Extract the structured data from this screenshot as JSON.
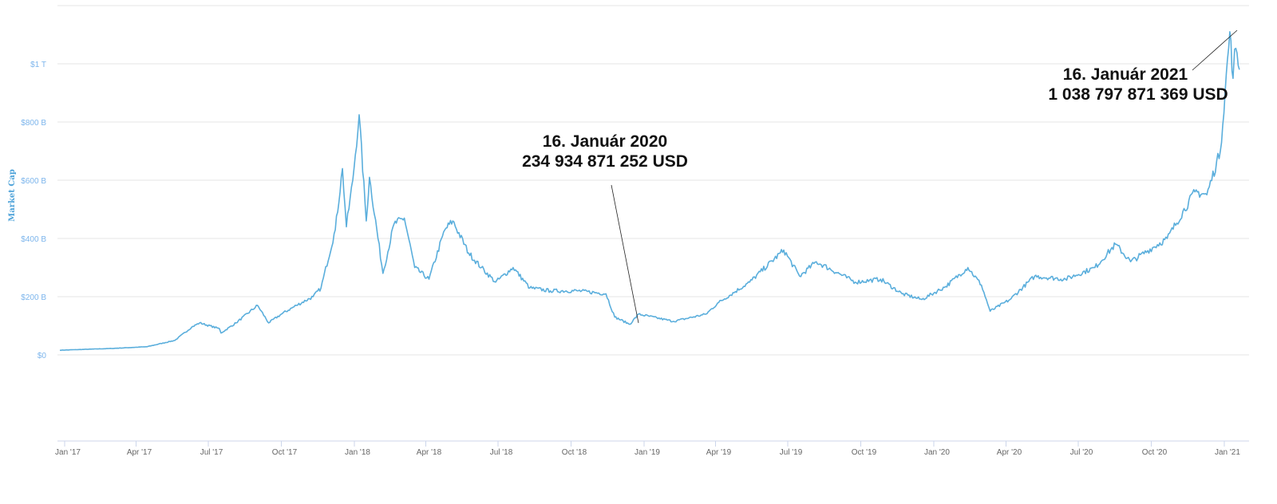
{
  "chart_data": {
    "type": "line",
    "title": "",
    "xlabel": "",
    "ylabel": "Market Cap",
    "ylim": [
      0,
      1000
    ],
    "y_unit": "billion USD",
    "grid": true,
    "line_color": "#5aaedc",
    "y_ticks": [
      {
        "value": 0,
        "label": "$0"
      },
      {
        "value": 200,
        "label": "$200 B"
      },
      {
        "value": 400,
        "label": "$400 B"
      },
      {
        "value": 600,
        "label": "$600 B"
      },
      {
        "value": 800,
        "label": "$800 B"
      },
      {
        "value": 1000,
        "label": "$1 T"
      }
    ],
    "x_ticks": [
      {
        "date": "2017-01-01",
        "label": "Jan '17"
      },
      {
        "date": "2017-04-01",
        "label": "Apr '17"
      },
      {
        "date": "2017-07-01",
        "label": "Jul '17"
      },
      {
        "date": "2017-10-01",
        "label": "Oct '17"
      },
      {
        "date": "2018-01-01",
        "label": "Jan '18"
      },
      {
        "date": "2018-04-01",
        "label": "Apr '18"
      },
      {
        "date": "2018-07-01",
        "label": "Jul '18"
      },
      {
        "date": "2018-10-01",
        "label": "Oct '18"
      },
      {
        "date": "2019-01-01",
        "label": "Jan '19"
      },
      {
        "date": "2019-04-01",
        "label": "Apr '19"
      },
      {
        "date": "2019-07-01",
        "label": "Jul '19"
      },
      {
        "date": "2019-10-01",
        "label": "Oct '19"
      },
      {
        "date": "2020-01-01",
        "label": "Jan '20"
      },
      {
        "date": "2020-04-01",
        "label": "Apr '20"
      },
      {
        "date": "2020-07-01",
        "label": "Jul '20"
      },
      {
        "date": "2020-10-01",
        "label": "Oct '20"
      },
      {
        "date": "2021-01-01",
        "label": "Jan '21"
      }
    ],
    "series": [
      {
        "name": "Market Cap",
        "points": [
          [
            "2016-12-26",
            16
          ],
          [
            "2017-03-01",
            22
          ],
          [
            "2017-04-15",
            28
          ],
          [
            "2017-05-20",
            50
          ],
          [
            "2017-06-10",
            95
          ],
          [
            "2017-06-20",
            110
          ],
          [
            "2017-07-15",
            90
          ],
          [
            "2017-07-17",
            75
          ],
          [
            "2017-08-05",
            110
          ],
          [
            "2017-09-01",
            170
          ],
          [
            "2017-09-15",
            110
          ],
          [
            "2017-10-01",
            140
          ],
          [
            "2017-10-20",
            170
          ],
          [
            "2017-11-10",
            200
          ],
          [
            "2017-11-20",
            230
          ],
          [
            "2017-12-08",
            430
          ],
          [
            "2017-12-17",
            640
          ],
          [
            "2017-12-22",
            440
          ],
          [
            "2017-12-30",
            600
          ],
          [
            "2018-01-07",
            825
          ],
          [
            "2018-01-16",
            460
          ],
          [
            "2018-01-20",
            610
          ],
          [
            "2018-02-06",
            280
          ],
          [
            "2018-02-20",
            450
          ],
          [
            "2018-03-05",
            470
          ],
          [
            "2018-03-18",
            300
          ],
          [
            "2018-04-05",
            260
          ],
          [
            "2018-04-25",
            430
          ],
          [
            "2018-05-05",
            460
          ],
          [
            "2018-05-25",
            350
          ],
          [
            "2018-06-10",
            300
          ],
          [
            "2018-06-28",
            250
          ],
          [
            "2018-07-20",
            300
          ],
          [
            "2018-08-10",
            230
          ],
          [
            "2018-09-05",
            220
          ],
          [
            "2018-10-10",
            220
          ],
          [
            "2018-11-14",
            210
          ],
          [
            "2018-11-25",
            130
          ],
          [
            "2018-12-14",
            105
          ],
          [
            "2018-12-25",
            140
          ],
          [
            "2019-02-07",
            115
          ],
          [
            "2019-03-20",
            140
          ],
          [
            "2019-04-05",
            180
          ],
          [
            "2019-05-14",
            250
          ],
          [
            "2019-06-26",
            360
          ],
          [
            "2019-07-16",
            270
          ],
          [
            "2019-08-06",
            320
          ],
          [
            "2019-09-24",
            250
          ],
          [
            "2019-10-26",
            260
          ],
          [
            "2019-11-22",
            210
          ],
          [
            "2019-12-17",
            190
          ],
          [
            "2020-01-16",
            235
          ],
          [
            "2020-02-13",
            300
          ],
          [
            "2020-03-01",
            240
          ],
          [
            "2020-03-12",
            150
          ],
          [
            "2020-04-06",
            190
          ],
          [
            "2020-05-07",
            270
          ],
          [
            "2020-06-15",
            260
          ],
          [
            "2020-07-22",
            300
          ],
          [
            "2020-08-17",
            380
          ],
          [
            "2020-09-05",
            320
          ],
          [
            "2020-10-21",
            400
          ],
          [
            "2020-11-25",
            560
          ],
          [
            "2020-12-10",
            550
          ],
          [
            "2020-12-27",
            700
          ],
          [
            "2021-01-08",
            1110
          ],
          [
            "2021-01-12",
            950
          ],
          [
            "2021-01-14",
            1050
          ],
          [
            "2021-01-20",
            980
          ]
        ]
      }
    ],
    "annotations": [
      {
        "line1": "16. Január 2020",
        "line2": "234 934 871 252 USD",
        "date": "2018-12-14",
        "value": 105
      },
      {
        "line1": "16.  Január 2021",
        "line2": "1 038 797 871 369 USD",
        "date": "2021-01-08",
        "value": 1110
      }
    ]
  }
}
